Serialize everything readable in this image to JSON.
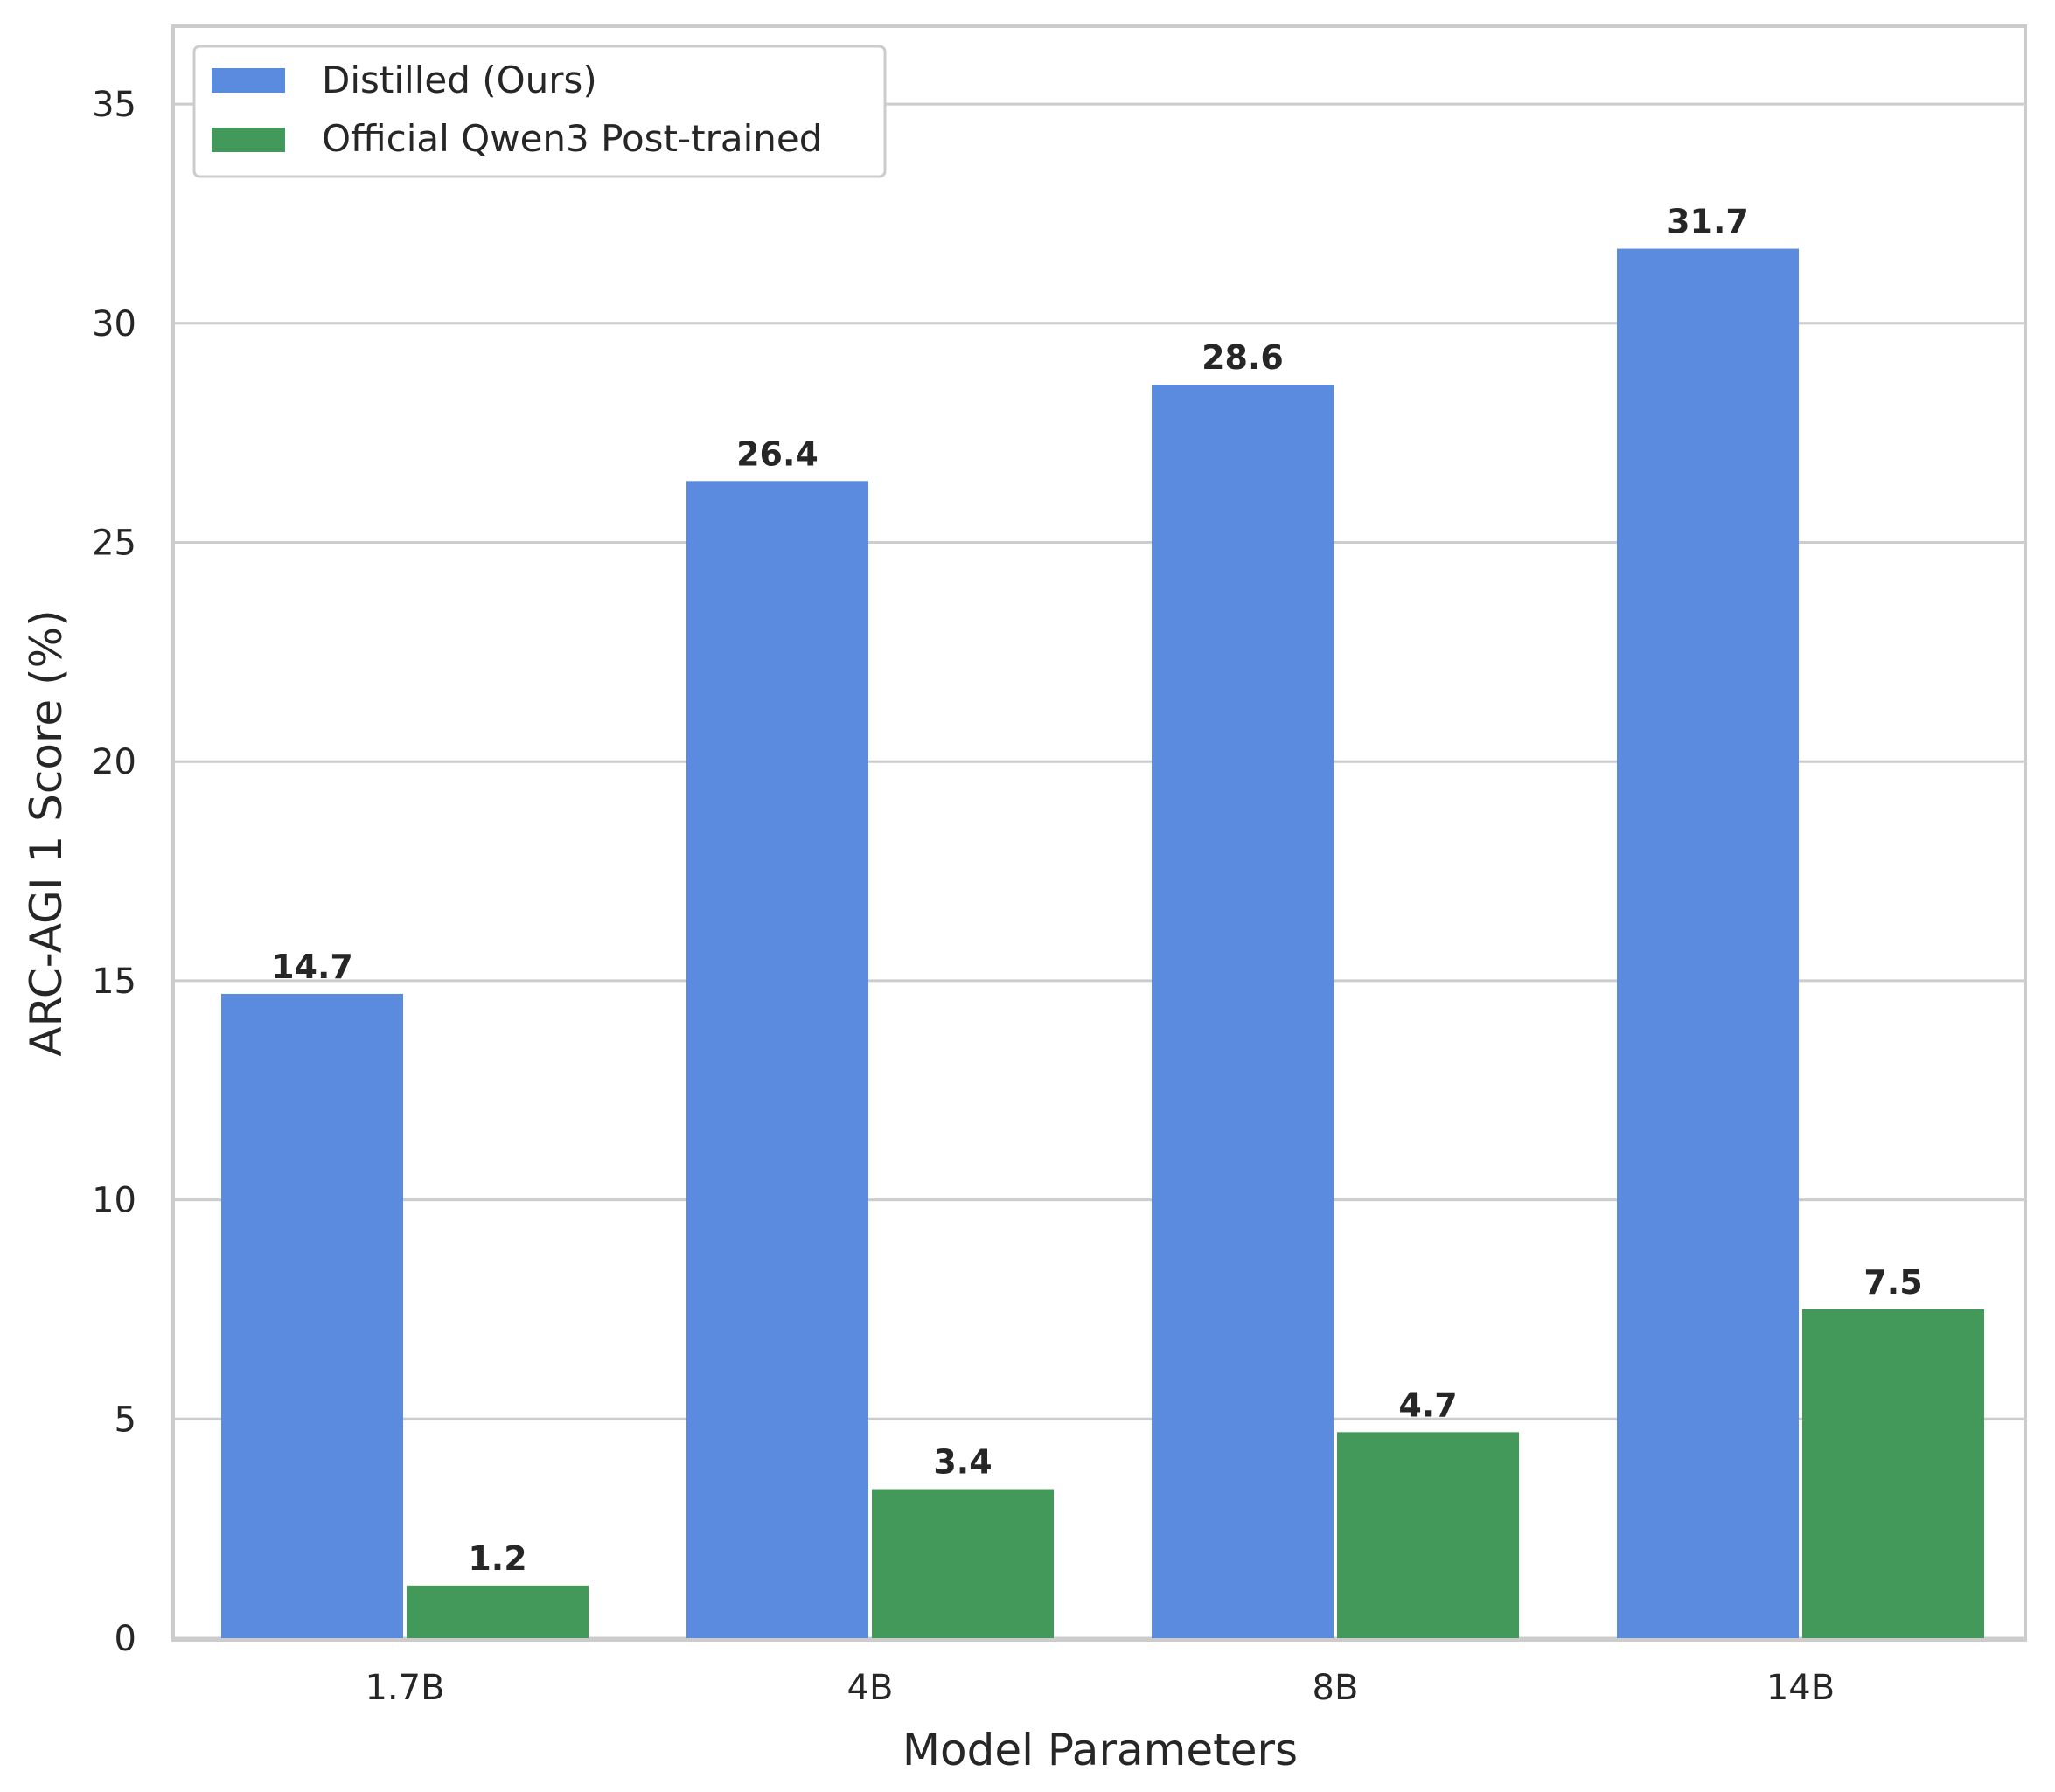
{
  "chart_data": {
    "type": "bar",
    "title": "",
    "xlabel": "Model Parameters",
    "ylabel": "ARC-AGI 1 Score (%)",
    "categories": [
      "1.7B",
      "4B",
      "8B",
      "14B"
    ],
    "series": [
      {
        "name": "Distilled (Ours)",
        "color": "#5b8bde",
        "values": [
          14.7,
          26.4,
          28.6,
          31.7
        ]
      },
      {
        "name": "Official Qwen3 Post-trained",
        "color": "#42995a",
        "values": [
          1.2,
          3.4,
          4.7,
          7.5
        ]
      }
    ],
    "ylim": [
      0,
      36.7
    ],
    "yticks": [
      0,
      5,
      10,
      15,
      20,
      25,
      30,
      35
    ],
    "value_label_format": "0.0",
    "grid": "horizontal",
    "legend_position": "top-left"
  }
}
